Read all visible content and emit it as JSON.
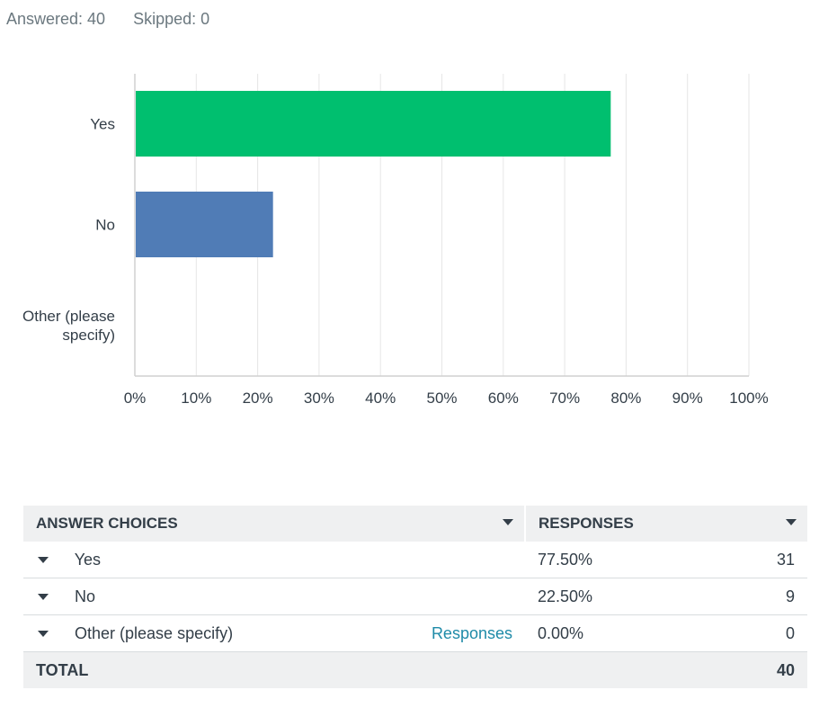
{
  "summary": {
    "answered": "Answered: 40",
    "skipped": "Skipped: 0"
  },
  "chart_data": {
    "type": "bar",
    "orientation": "horizontal",
    "categories": [
      "Yes",
      "No",
      "Other (please specify)"
    ],
    "category_lines": [
      [
        "Yes"
      ],
      [
        "No"
      ],
      [
        "Other (please",
        "specify)"
      ]
    ],
    "values": [
      77.5,
      22.5,
      0
    ],
    "bar_colors": [
      "#00bf6f",
      "#507cb6",
      "#6bc8cd"
    ],
    "xlim": [
      0,
      100
    ],
    "xticks": [
      "0%",
      "10%",
      "20%",
      "30%",
      "40%",
      "50%",
      "60%",
      "70%",
      "80%",
      "90%",
      "100%"
    ],
    "grid": true
  },
  "table": {
    "headers": {
      "choices": "ANSWER CHOICES",
      "responses": "RESPONSES"
    },
    "rows": [
      {
        "choice": "Yes",
        "percent": "77.50%",
        "count": "31",
        "link": ""
      },
      {
        "choice": "No",
        "percent": "22.50%",
        "count": "9",
        "link": ""
      },
      {
        "choice": "Other (please specify)",
        "percent": "0.00%",
        "count": "0",
        "link": "Responses"
      }
    ],
    "total": {
      "label": "TOTAL",
      "count": "40"
    }
  }
}
